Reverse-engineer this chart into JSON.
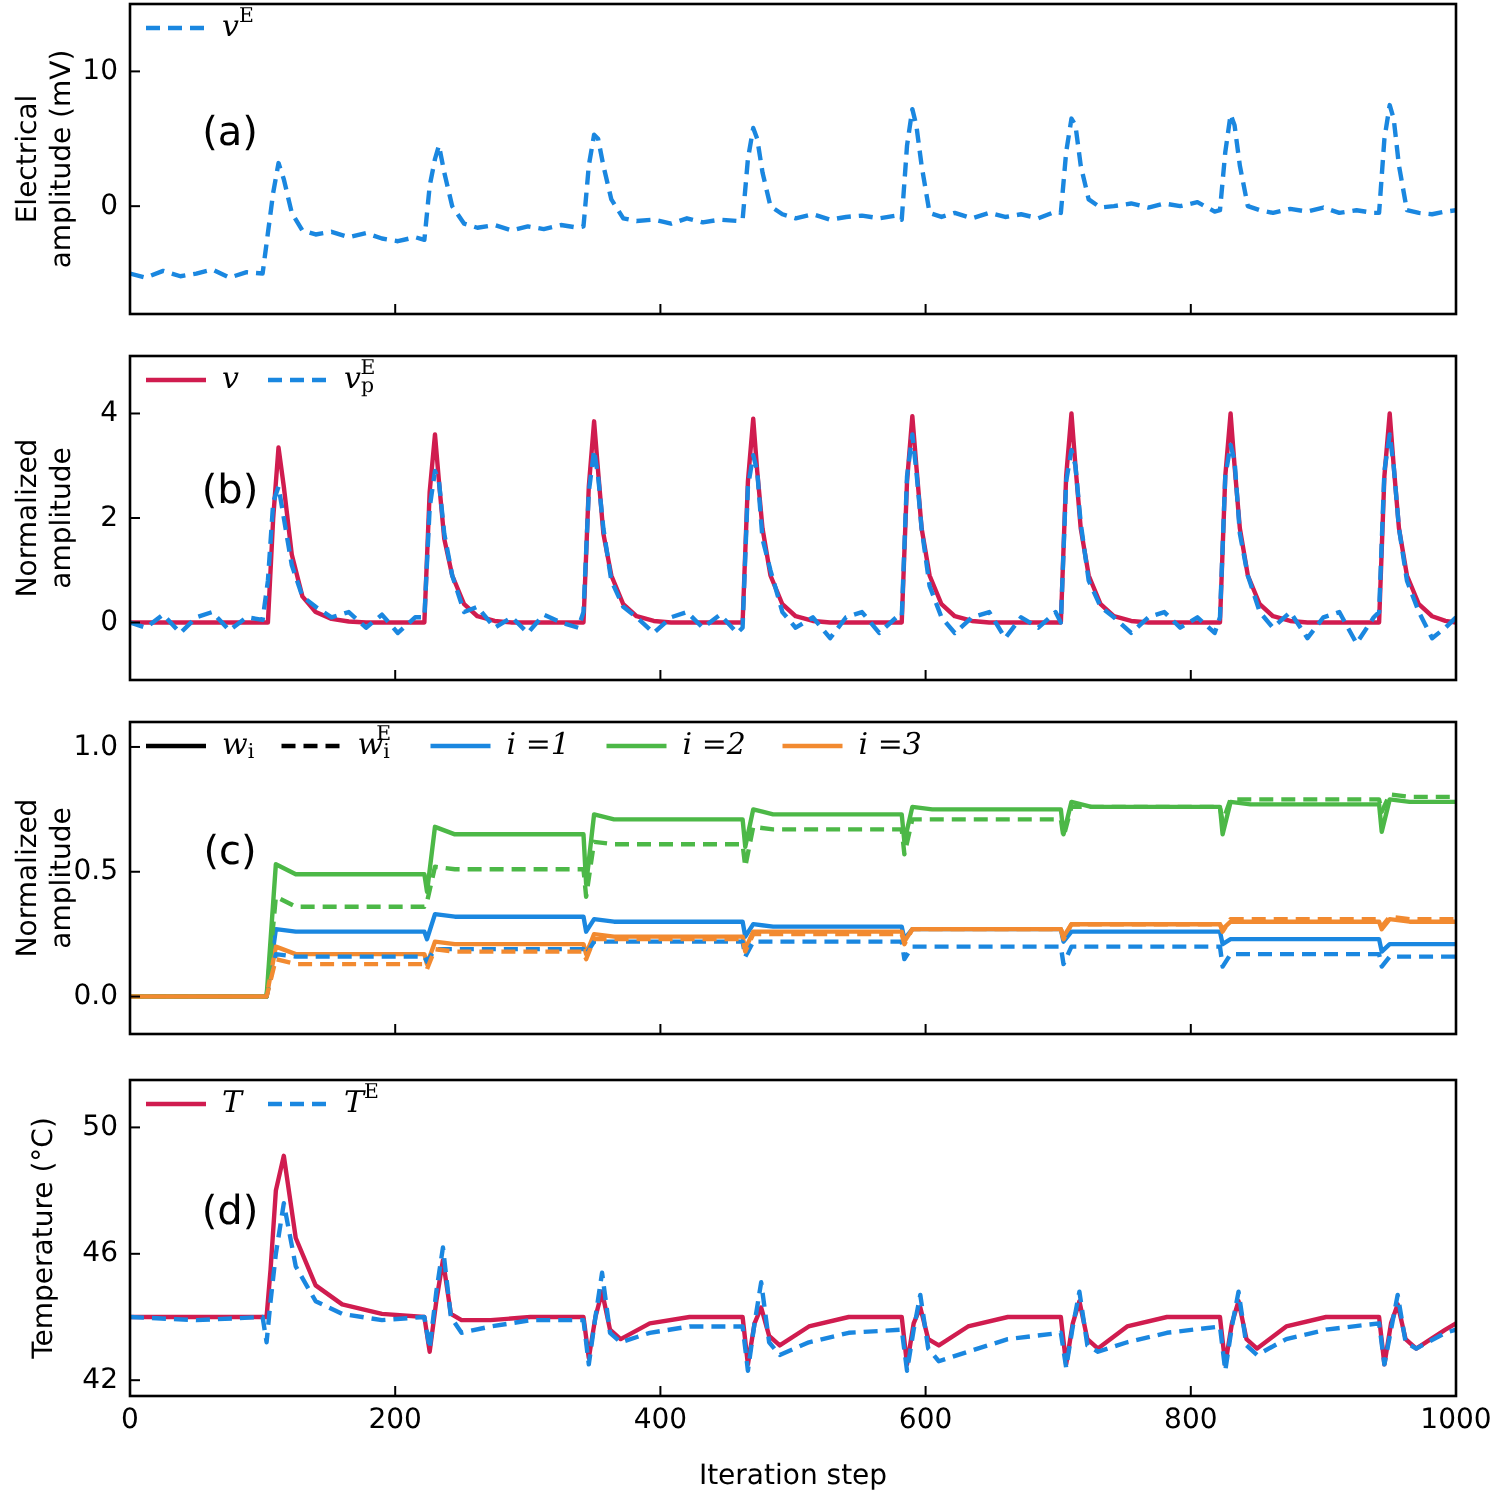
{
  "chart_data": [
    {
      "type": "line",
      "ylabel": "Electrical\namplitude (mV)",
      "annotations": [
        "(a)"
      ],
      "xlim": [
        0,
        1000
      ],
      "xticks": [
        0,
        200,
        400,
        600,
        800,
        1000
      ],
      "ylim": [
        -8,
        15
      ],
      "yticks": [
        0,
        10
      ],
      "tick_labels": "y",
      "legend": "top left",
      "x": [
        0,
        12,
        25,
        38,
        50,
        62,
        75,
        88,
        100,
        104,
        108,
        112,
        116,
        122,
        130,
        140,
        152,
        165,
        178,
        190,
        202,
        215,
        222,
        226,
        230,
        233,
        237,
        243,
        252,
        262,
        275,
        288,
        300,
        312,
        325,
        338,
        342,
        346,
        350,
        353,
        357,
        363,
        372,
        382,
        395,
        408,
        420,
        432,
        445,
        458,
        462,
        466,
        470,
        473,
        477,
        483,
        492,
        502,
        515,
        528,
        540,
        552,
        565,
        578,
        582,
        586,
        590,
        593,
        597,
        603,
        612,
        622,
        635,
        648,
        660,
        672,
        685,
        698,
        702,
        706,
        710,
        713,
        717,
        723,
        732,
        742,
        755,
        768,
        780,
        792,
        805,
        818,
        822,
        826,
        830,
        833,
        837,
        843,
        852,
        862,
        875,
        888,
        900,
        912,
        925,
        938,
        942,
        946,
        950,
        953,
        957,
        963,
        972,
        982,
        992,
        1000
      ],
      "series": [
        {
          "name": "v$^{E}$",
          "color": "#1a87e0",
          "line_style": "dashed",
          "values": [
            -5,
            -5.3,
            -4.8,
            -5.2,
            -5,
            -4.7,
            -5.3,
            -4.9,
            -5,
            -2,
            1,
            3.2,
            2,
            -0.5,
            -1.8,
            -2.1,
            -1.9,
            -2.3,
            -2,
            -2.4,
            -2.6,
            -2.3,
            -2.5,
            1.5,
            3.5,
            4.5,
            2.5,
            0,
            -1.3,
            -1.6,
            -1.4,
            -1.8,
            -1.5,
            -1.7,
            -1.4,
            -1.6,
            -1.5,
            3,
            5.3,
            5,
            3,
            0.5,
            -0.9,
            -1.1,
            -1,
            -1.3,
            -0.9,
            -1.2,
            -1,
            -1.1,
            -1,
            3.5,
            5.8,
            5,
            2.5,
            0,
            -0.6,
            -0.9,
            -0.6,
            -1,
            -0.8,
            -0.7,
            -0.9,
            -0.7,
            -1,
            4.5,
            7.2,
            6,
            3,
            -0.5,
            -0.8,
            -0.5,
            -0.9,
            -0.5,
            -0.8,
            -0.6,
            -0.9,
            -0.4,
            -0.5,
            4,
            6.5,
            6,
            3,
            0.5,
            -0.1,
            0,
            0.2,
            -0.1,
            0.2,
            0,
            0.3,
            -0.4,
            -0.3,
            4,
            6.8,
            6,
            3,
            0,
            -0.3,
            -0.5,
            -0.2,
            -0.4,
            -0.1,
            -0.5,
            -0.3,
            -0.5,
            -0.5,
            5,
            7.5,
            6.5,
            3,
            -0.3,
            -0.5,
            -0.6,
            -0.4,
            -0.3
          ]
        }
      ]
    },
    {
      "type": "line",
      "ylabel": "Normalized\namplitude",
      "annotations": [
        "(b)"
      ],
      "xlim": [
        0,
        1000
      ],
      "xticks": [
        0,
        200,
        400,
        600,
        800,
        1000
      ],
      "ylim": [
        -1.1,
        5.1
      ],
      "yticks": [
        0,
        2,
        4
      ],
      "tick_labels": "y",
      "legend": "top left",
      "x": [
        0,
        12,
        25,
        38,
        50,
        62,
        75,
        88,
        100,
        104,
        108,
        112,
        116,
        122,
        130,
        140,
        152,
        165,
        178,
        190,
        202,
        215,
        222,
        226,
        230,
        233,
        237,
        243,
        252,
        262,
        275,
        288,
        300,
        312,
        325,
        338,
        342,
        346,
        350,
        353,
        357,
        363,
        372,
        382,
        395,
        408,
        420,
        432,
        445,
        458,
        462,
        466,
        470,
        473,
        477,
        483,
        492,
        502,
        515,
        528,
        540,
        552,
        565,
        578,
        582,
        586,
        590,
        593,
        597,
        603,
        612,
        622,
        635,
        648,
        660,
        672,
        685,
        698,
        702,
        706,
        710,
        713,
        717,
        723,
        732,
        742,
        755,
        768,
        780,
        792,
        805,
        818,
        822,
        826,
        830,
        833,
        837,
        843,
        852,
        862,
        875,
        888,
        900,
        912,
        925,
        938,
        942,
        946,
        950,
        953,
        957,
        963,
        972,
        982,
        992,
        1000
      ],
      "series": [
        {
          "name": "v",
          "color": "#d01c4f",
          "line_style": "solid",
          "values": [
            0,
            0,
            0,
            0,
            0,
            0,
            0,
            0,
            0,
            0,
            2.0,
            3.35,
            2.6,
            1.3,
            0.5,
            0.2,
            0.07,
            0.02,
            0,
            0,
            0,
            0,
            0,
            2.5,
            3.6,
            2.7,
            1.6,
            0.9,
            0.35,
            0.12,
            0.03,
            0,
            0,
            0,
            0,
            0,
            0,
            2.6,
            3.85,
            2.9,
            1.7,
            0.9,
            0.35,
            0.12,
            0.03,
            0,
            0,
            0,
            0,
            0,
            0,
            2.7,
            3.9,
            2.9,
            1.8,
            0.9,
            0.35,
            0.12,
            0.03,
            0,
            0,
            0,
            0,
            0,
            0,
            2.7,
            3.95,
            3.0,
            1.8,
            0.9,
            0.35,
            0.12,
            0.03,
            0,
            0,
            0,
            0,
            0,
            0,
            2.8,
            4.0,
            3.0,
            1.8,
            0.9,
            0.35,
            0.12,
            0.03,
            0,
            0,
            0,
            0,
            0,
            0,
            2.8,
            4.0,
            3.0,
            1.8,
            0.9,
            0.35,
            0.12,
            0.03,
            0,
            0,
            0,
            0,
            0,
            0,
            2.8,
            4.0,
            3.0,
            1.8,
            0.9,
            0.35,
            0.12,
            0.03,
            0
          ]
        },
        {
          "name": "v$_{p}$$^{E}$",
          "color": "#1a87e0",
          "line_style": "dashed",
          "values": [
            0,
            -0.1,
            0.15,
            -0.2,
            0.1,
            0.2,
            -0.15,
            0.1,
            0.05,
            0.8,
            2.3,
            2.6,
            2.0,
            1.1,
            0.5,
            0.3,
            0.1,
            0.2,
            -0.1,
            0.15,
            -0.2,
            0.1,
            0.1,
            2.2,
            2.9,
            2.7,
            1.7,
            0.9,
            0.2,
            0.3,
            -0.1,
            0.1,
            -0.2,
            0.15,
            0,
            -0.1,
            0.2,
            2.5,
            3.3,
            2.8,
            1.8,
            0.8,
            0.3,
            0.1,
            -0.2,
            0.1,
            0.2,
            -0.1,
            0.15,
            -0.2,
            -0.1,
            2.6,
            3.2,
            2.9,
            1.6,
            1.0,
            0.2,
            -0.1,
            0.1,
            -0.3,
            0.1,
            0.2,
            -0.2,
            0.1,
            0.1,
            2.8,
            3.6,
            2.9,
            1.8,
            0.7,
            0.1,
            -0.2,
            0.1,
            0.2,
            -0.3,
            0.1,
            -0.1,
            0.2,
            0,
            2.7,
            3.3,
            3.0,
            1.9,
            0.8,
            0.3,
            0.1,
            -0.2,
            0.1,
            0.2,
            -0.1,
            0.1,
            -0.2,
            0.1,
            2.8,
            3.4,
            3.1,
            1.7,
            0.9,
            0.2,
            -0.1,
            0.2,
            -0.3,
            0.1,
            0.2,
            -0.4,
            0.1,
            0.2,
            2.9,
            3.6,
            3.0,
            1.8,
            0.8,
            0.2,
            -0.3,
            -0.1,
            0.1
          ]
        }
      ]
    },
    {
      "type": "line",
      "ylabel": "Normalized\namplitude",
      "annotations": [
        "(c)"
      ],
      "xlim": [
        0,
        1000
      ],
      "xticks": [
        0,
        200,
        400,
        600,
        800,
        1000
      ],
      "ylim": [
        -0.15,
        1.1
      ],
      "yticks": [
        {
          "value": 0,
          "label": "0.0"
        },
        {
          "value": 0.5,
          "label": "0.5"
        },
        {
          "value": 1,
          "label": "1.0"
        }
      ],
      "tick_labels": "y",
      "legend": "top left",
      "x": [
        0,
        103,
        110,
        125,
        222,
        224,
        230,
        245,
        342,
        344,
        350,
        365,
        462,
        464,
        470,
        485,
        582,
        584,
        590,
        605,
        702,
        704,
        710,
        725,
        822,
        824,
        830,
        845,
        942,
        944,
        950,
        965,
        1000
      ],
      "series": [
        {
          "name": "w$_{i}$",
          "color": "#000000",
          "line_style": "solid",
          "values": [
            null,
            null,
            null,
            null,
            null,
            null,
            null,
            null,
            null,
            null,
            null,
            null,
            null,
            null,
            null,
            null,
            null,
            null,
            null,
            null,
            null,
            null,
            null,
            null,
            null,
            null,
            null,
            null,
            null,
            null,
            null,
            null,
            null
          ]
        },
        {
          "name": "w$_{i}$$^{E}$",
          "color": "#000000",
          "line_style": "dashed",
          "values": [
            null,
            null,
            null,
            null,
            null,
            null,
            null,
            null,
            null,
            null,
            null,
            null,
            null,
            null,
            null,
            null,
            null,
            null,
            null,
            null,
            null,
            null,
            null,
            null,
            null,
            null,
            null,
            null,
            null,
            null,
            null,
            null,
            null
          ]
        },
        {
          "name": "i =1",
          "color": "#1a87e0",
          "line_style": "solid",
          "values": [
            null,
            null,
            null,
            null,
            null,
            null,
            null,
            null,
            null,
            null,
            null,
            null,
            null,
            null,
            null,
            null,
            null,
            null,
            null,
            null,
            null,
            null,
            null,
            null,
            null,
            null,
            null,
            null,
            null,
            null,
            null,
            null,
            null
          ]
        },
        {
          "name": "i =2",
          "color": "#4cb847",
          "line_style": "solid",
          "values": [
            null,
            null,
            null,
            null,
            null,
            null,
            null,
            null,
            null,
            null,
            null,
            null,
            null,
            null,
            null,
            null,
            null,
            null,
            null,
            null,
            null,
            null,
            null,
            null,
            null,
            null,
            null,
            null,
            null,
            null,
            null,
            null,
            null
          ]
        },
        {
          "name": "i =3",
          "color": "#f28a30",
          "line_style": "solid",
          "values": [
            null,
            null,
            null,
            null,
            null,
            null,
            null,
            null,
            null,
            null,
            null,
            null,
            null,
            null,
            null,
            null,
            null,
            null,
            null,
            null,
            null,
            null,
            null,
            null,
            null,
            null,
            null,
            null,
            null,
            null,
            null,
            null,
            null
          ]
        },
        {
          "color": "#1a87e0",
          "line_style": "solid",
          "values": [
            0,
            0,
            0.27,
            0.26,
            0.26,
            0.23,
            0.33,
            0.32,
            0.32,
            0.26,
            0.31,
            0.3,
            0.3,
            0.24,
            0.29,
            0.28,
            0.28,
            0.23,
            0.27,
            0.27,
            0.27,
            0.22,
            0.26,
            0.26,
            0.26,
            0.21,
            0.23,
            0.23,
            0.23,
            0.18,
            0.21,
            0.21,
            0.21
          ]
        },
        {
          "color": "#4cb847",
          "line_style": "solid",
          "values": [
            0,
            0,
            0.53,
            0.49,
            0.49,
            0.42,
            0.68,
            0.65,
            0.65,
            0.45,
            0.73,
            0.71,
            0.71,
            0.6,
            0.75,
            0.73,
            0.73,
            0.62,
            0.76,
            0.75,
            0.75,
            0.65,
            0.78,
            0.76,
            0.76,
            0.65,
            0.78,
            0.77,
            0.77,
            0.66,
            0.79,
            0.78,
            0.78
          ]
        },
        {
          "color": "#f28a30",
          "line_style": "solid",
          "values": [
            0,
            0,
            0.2,
            0.17,
            0.17,
            0.13,
            0.22,
            0.21,
            0.21,
            0.17,
            0.25,
            0.24,
            0.24,
            0.19,
            0.26,
            0.26,
            0.26,
            0.22,
            0.27,
            0.27,
            0.27,
            0.24,
            0.29,
            0.29,
            0.29,
            0.27,
            0.3,
            0.3,
            0.3,
            0.27,
            0.31,
            0.3,
            0.3
          ]
        },
        {
          "color": "#1a87e0",
          "line_style": "dashed",
          "values": [
            0,
            0,
            0.17,
            0.16,
            0.16,
            0.14,
            0.19,
            0.19,
            0.19,
            0.17,
            0.22,
            0.22,
            0.22,
            0.16,
            0.22,
            0.22,
            0.22,
            0.15,
            0.2,
            0.2,
            0.2,
            0.13,
            0.2,
            0.2,
            0.2,
            0.12,
            0.17,
            0.17,
            0.17,
            0.12,
            0.16,
            0.16,
            0.16
          ]
        },
        {
          "color": "#4cb847",
          "line_style": "dashed",
          "values": [
            0,
            0,
            0.4,
            0.36,
            0.36,
            0.38,
            0.52,
            0.51,
            0.51,
            0.4,
            0.62,
            0.61,
            0.61,
            0.52,
            0.68,
            0.67,
            0.67,
            0.57,
            0.71,
            0.71,
            0.71,
            0.64,
            0.76,
            0.76,
            0.76,
            0.7,
            0.79,
            0.79,
            0.79,
            0.74,
            0.81,
            0.8,
            0.8
          ]
        },
        {
          "color": "#f28a30",
          "line_style": "dashed",
          "values": [
            0,
            0,
            0.15,
            0.13,
            0.13,
            0.11,
            0.19,
            0.18,
            0.18,
            0.15,
            0.23,
            0.23,
            0.23,
            0.18,
            0.25,
            0.25,
            0.25,
            0.21,
            0.27,
            0.27,
            0.27,
            0.23,
            0.29,
            0.29,
            0.29,
            0.26,
            0.31,
            0.31,
            0.31,
            0.28,
            0.32,
            0.31,
            0.31
          ]
        }
      ]
    },
    {
      "type": "line",
      "xlabel": "Iteration step",
      "ylabel": "Temperature (°C)",
      "annotations": [
        "(d)"
      ],
      "xlim": [
        0,
        1000
      ],
      "xticks": [
        0,
        200,
        400,
        600,
        800,
        1000
      ],
      "ylim": [
        41.5,
        51.5
      ],
      "yticks": [
        42,
        46,
        50
      ],
      "legend": "top left",
      "x": [
        0,
        50,
        100,
        103,
        106,
        110,
        116,
        125,
        140,
        160,
        190,
        222,
        226,
        231,
        236,
        242,
        250,
        272,
        302,
        342,
        346,
        351,
        356,
        362,
        370,
        392,
        422,
        462,
        466,
        471,
        476,
        482,
        490,
        512,
        542,
        582,
        586,
        591,
        596,
        602,
        610,
        632,
        662,
        702,
        706,
        711,
        716,
        722,
        730,
        752,
        782,
        822,
        826,
        831,
        836,
        842,
        850,
        872,
        902,
        942,
        946,
        951,
        956,
        962,
        970,
        992,
        1000
      ],
      "series": [
        {
          "name": "T",
          "color": "#d01c4f",
          "line_style": "solid",
          "values": [
            44,
            44,
            44,
            44,
            45.5,
            48,
            49.1,
            46.5,
            45,
            44.4,
            44.1,
            44,
            42.9,
            44.5,
            45.8,
            44.1,
            43.9,
            43.9,
            44,
            44,
            42.7,
            44,
            44.8,
            43.6,
            43.3,
            43.8,
            44,
            44,
            42.5,
            43.8,
            44.3,
            43.4,
            43.1,
            43.7,
            44,
            44,
            42.5,
            43.8,
            44.3,
            43.3,
            43.1,
            43.7,
            44,
            44,
            42.5,
            43.8,
            44.5,
            43.3,
            43,
            43.7,
            44,
            44,
            42.5,
            43.8,
            44.5,
            43.3,
            43,
            43.7,
            44,
            44,
            42.5,
            43.8,
            44.4,
            43.3,
            43,
            43.6,
            43.8
          ]
        },
        {
          "name": "T$^{E}$",
          "color": "#1a87e0",
          "line_style": "dashed",
          "values": [
            44,
            43.9,
            44,
            43.2,
            44.5,
            46,
            47.6,
            45.6,
            44.5,
            44.1,
            43.9,
            44,
            43,
            44.8,
            46.2,
            44,
            43.5,
            43.7,
            43.9,
            43.9,
            42.5,
            44,
            45.4,
            43.5,
            43.2,
            43.5,
            43.7,
            43.7,
            42.3,
            43.8,
            45.1,
            43.2,
            42.8,
            43.2,
            43.5,
            43.6,
            42.3,
            43.6,
            44.7,
            43,
            42.6,
            42.9,
            43.3,
            43.5,
            42.4,
            43.7,
            44.8,
            43.1,
            42.9,
            43.2,
            43.5,
            43.7,
            42.3,
            43.7,
            44.8,
            43.1,
            42.8,
            43.3,
            43.6,
            43.8,
            42.5,
            43.6,
            44.7,
            43.2,
            43,
            43.5,
            43.6
          ]
        }
      ]
    }
  ]
}
